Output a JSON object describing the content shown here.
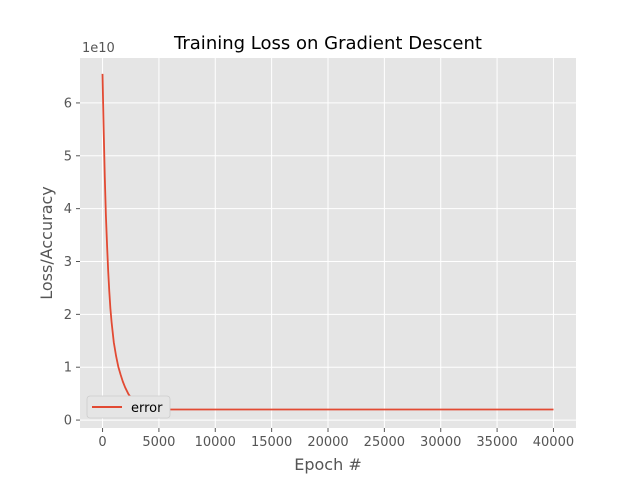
{
  "chart_data": {
    "type": "line",
    "title": "Training Loss on Gradient Descent",
    "xlabel": "Epoch #",
    "ylabel": "Loss/Accuracy",
    "y_scale_label": "1e10",
    "xlim": [
      -2000,
      42000
    ],
    "ylim": [
      -0.15,
      6.85
    ],
    "x_ticks": [
      0,
      5000,
      10000,
      15000,
      20000,
      25000,
      30000,
      35000,
      40000
    ],
    "x_tick_labels": [
      "0",
      "5000",
      "10000",
      "15000",
      "20000",
      "25000",
      "30000",
      "35000",
      "40000"
    ],
    "y_ticks": [
      0,
      1,
      2,
      3,
      4,
      5,
      6
    ],
    "y_tick_labels": [
      "0",
      "1",
      "2",
      "3",
      "4",
      "5",
      "6"
    ],
    "grid": true,
    "legend_position": "lower-left",
    "series": [
      {
        "name": "error",
        "color": "#e24a33",
        "x": [
          0,
          100,
          200,
          300,
          400,
          500,
          600,
          700,
          800,
          1000,
          1200,
          1400,
          1600,
          1800,
          2000,
          2300,
          2600,
          3000,
          3500,
          4000,
          5000,
          6000,
          8000,
          10000,
          15000,
          20000,
          25000,
          30000,
          35000,
          40000
        ],
        "y": [
          6.55,
          5.47,
          4.59,
          3.87,
          3.29,
          2.81,
          2.43,
          2.11,
          1.85,
          1.47,
          1.21,
          1.01,
          0.86,
          0.73,
          0.62,
          0.49,
          0.4,
          0.33,
          0.27,
          0.24,
          0.21,
          0.2,
          0.2,
          0.2,
          0.2,
          0.2,
          0.2,
          0.2,
          0.2,
          0.2
        ]
      }
    ]
  },
  "colors": {
    "plot_background": "#e5e5e5",
    "grid": "#ffffff",
    "axis_text": "#555555"
  }
}
